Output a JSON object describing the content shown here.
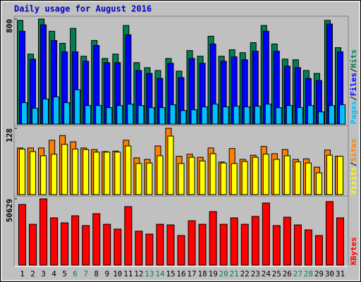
{
  "title": "Daily usage for August 2016",
  "legend_separator": "/",
  "chart_data": [
    {
      "type": "bar",
      "ylim": [
        0,
        800
      ],
      "yticks": [
        800
      ],
      "series": [
        {
          "name": "Hits",
          "color": "#008050",
          "values": [
            790,
            533,
            800,
            707,
            615,
            729,
            517,
            637,
            500,
            533,
            751,
            468,
            430,
            408,
            500,
            403,
            560,
            517,
            669,
            517,
            566,
            544,
            620,
            751,
            610,
            495,
            490,
            408,
            386,
            790,
            582
          ]
        },
        {
          "name": "Files",
          "color": "#0000ff",
          "values": [
            707,
            495,
            756,
            637,
            550,
            550,
            479,
            599,
            468,
            468,
            680,
            408,
            386,
            348,
            463,
            354,
            500,
            463,
            610,
            479,
            512,
            490,
            555,
            707,
            555,
            441,
            430,
            348,
            332,
            762,
            550
          ]
        },
        {
          "name": "Pages",
          "color": "#00c0ff",
          "values": [
            163,
            120,
            191,
            207,
            163,
            261,
            141,
            141,
            125,
            141,
            152,
            141,
            125,
            125,
            147,
            103,
            109,
            131,
            152,
            131,
            136,
            131,
            136,
            152,
            125,
            141,
            125,
            141,
            93,
            141,
            147
          ]
        }
      ]
    },
    {
      "type": "bar",
      "ylim": [
        0,
        128
      ],
      "yticks": [
        128
      ],
      "series": [
        {
          "name": "Sites",
          "color": "#ff8000",
          "values": [
            90,
            90,
            90,
            105,
            114,
            102,
            90,
            87,
            83,
            84,
            105,
            71,
            68,
            94,
            128,
            74,
            78,
            72,
            90,
            63,
            89,
            68,
            76,
            93,
            79,
            87,
            68,
            69,
            53,
            86,
            74
          ]
        },
        {
          "name": "Visits",
          "color": "#ffff00",
          "values": [
            88,
            83,
            75,
            78,
            97,
            88,
            87,
            82,
            82,
            82,
            94,
            60,
            61,
            75,
            113,
            60,
            72,
            65,
            79,
            61,
            60,
            64,
            72,
            78,
            68,
            75,
            63,
            61,
            42,
            76,
            74
          ]
        }
      ]
    },
    {
      "type": "bar",
      "ylim": [
        0,
        50629
      ],
      "yticks": [
        50629
      ],
      "categories": [
        "1",
        "2",
        "3",
        "4",
        "5",
        "6",
        "7",
        "8",
        "9",
        "10",
        "11",
        "12",
        "13",
        "14",
        "15",
        "16",
        "17",
        "18",
        "19",
        "20",
        "21",
        "22",
        "23",
        "24",
        "25",
        "26",
        "27",
        "28",
        "29",
        "30",
        "31"
      ],
      "category_colors": [
        "#000000",
        "#000000",
        "#000000",
        "#000000",
        "#000000",
        "#00805c",
        "#00805c",
        "#000000",
        "#000000",
        "#000000",
        "#000000",
        "#000000",
        "#00805c",
        "#00805c",
        "#000000",
        "#000000",
        "#000000",
        "#000000",
        "#000000",
        "#00805c",
        "#00805c",
        "#000000",
        "#000000",
        "#000000",
        "#000000",
        "#000000",
        "#00805c",
        "#00805c",
        "#000000",
        "#000000",
        "#000000"
      ],
      "series": [
        {
          "name": "KBytes",
          "color": "#ff0000",
          "values": [
            46300,
            31200,
            50629,
            36100,
            32300,
            37700,
            30200,
            39300,
            31200,
            27500,
            44700,
            25900,
            23700,
            31200,
            30700,
            22600,
            33900,
            31200,
            40900,
            31200,
            36100,
            31200,
            37200,
            47400,
            30200,
            36600,
            30700,
            26900,
            22600,
            48500,
            36100
          ]
        }
      ]
    }
  ]
}
